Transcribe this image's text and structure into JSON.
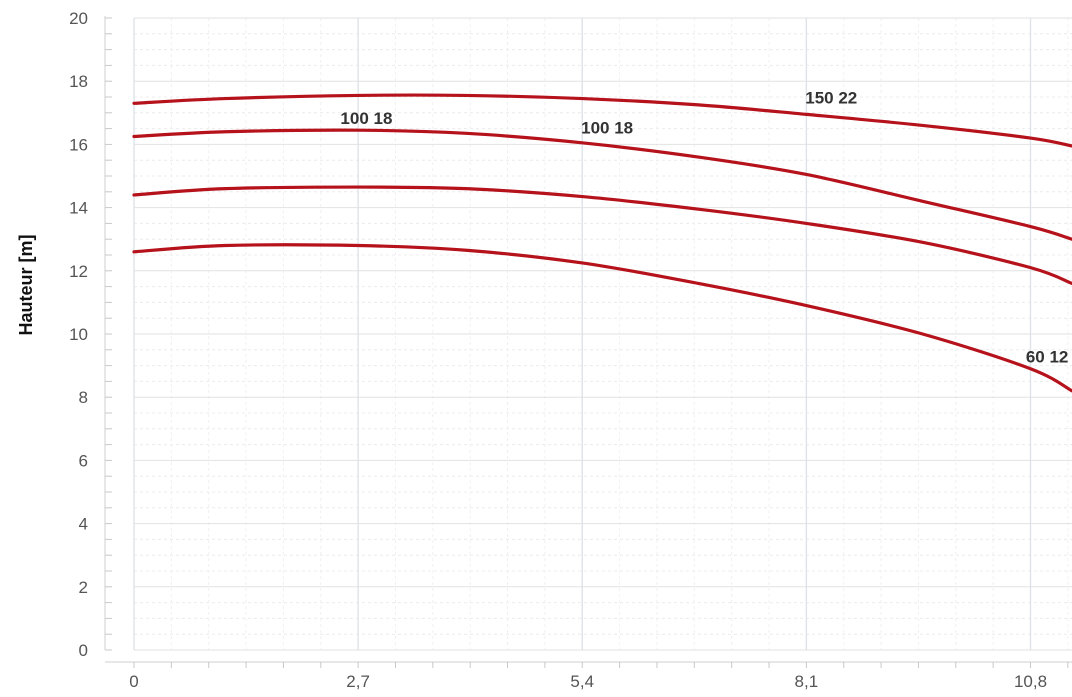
{
  "chart_data": {
    "type": "line",
    "title": "",
    "xlabel": "",
    "ylabel": "Hauteur [m]",
    "xlim": [
      0,
      11.3
    ],
    "ylim": [
      0,
      20
    ],
    "x_ticks": [
      "0",
      "2,7",
      "5,4",
      "8,1",
      "10,8"
    ],
    "x_tick_values": [
      0,
      2.7,
      5.4,
      8.1,
      10.8
    ],
    "y_ticks": [
      "0",
      "2",
      "4",
      "6",
      "8",
      "10",
      "12",
      "14",
      "16",
      "18",
      "20"
    ],
    "y_tick_values": [
      0,
      2,
      4,
      6,
      8,
      10,
      12,
      14,
      16,
      18,
      20
    ],
    "grid": true,
    "line_color": "#b5121b",
    "series": [
      {
        "name": "150 22",
        "x": [
          0,
          1.1,
          2.7,
          4.0,
          5.4,
          6.8,
          8.1,
          9.5,
          10.8,
          11.3
        ],
        "values": [
          17.3,
          17.45,
          17.55,
          17.55,
          17.45,
          17.25,
          16.95,
          16.6,
          16.2,
          15.95
        ]
      },
      {
        "name": "100 18",
        "x": [
          0,
          1.1,
          2.7,
          4.0,
          5.4,
          6.8,
          8.1,
          9.5,
          10.8,
          11.3
        ],
        "values": [
          16.25,
          16.4,
          16.45,
          16.35,
          16.05,
          15.6,
          15.05,
          14.2,
          13.4,
          13.0
        ]
      },
      {
        "name": "",
        "x": [
          0,
          1.1,
          2.7,
          4.0,
          5.4,
          6.8,
          8.1,
          9.5,
          10.8,
          11.3
        ],
        "values": [
          14.4,
          14.6,
          14.65,
          14.6,
          14.35,
          13.95,
          13.5,
          12.9,
          12.1,
          11.6
        ]
      },
      {
        "name": "60 12",
        "x": [
          0,
          1.1,
          2.7,
          4.0,
          5.4,
          6.8,
          8.1,
          9.5,
          10.8,
          11.3
        ],
        "values": [
          12.6,
          12.8,
          12.8,
          12.65,
          12.25,
          11.6,
          10.9,
          10.0,
          8.9,
          8.2
        ]
      }
    ],
    "annotations": [
      {
        "text": "150 22",
        "x": 8.4,
        "y": 17.3
      },
      {
        "text": "100 18",
        "x": 2.8,
        "y": 16.65
      },
      {
        "text": "100 18",
        "x": 5.7,
        "y": 16.35
      },
      {
        "text": "60 12",
        "x": 11.0,
        "y": 9.1
      }
    ]
  }
}
